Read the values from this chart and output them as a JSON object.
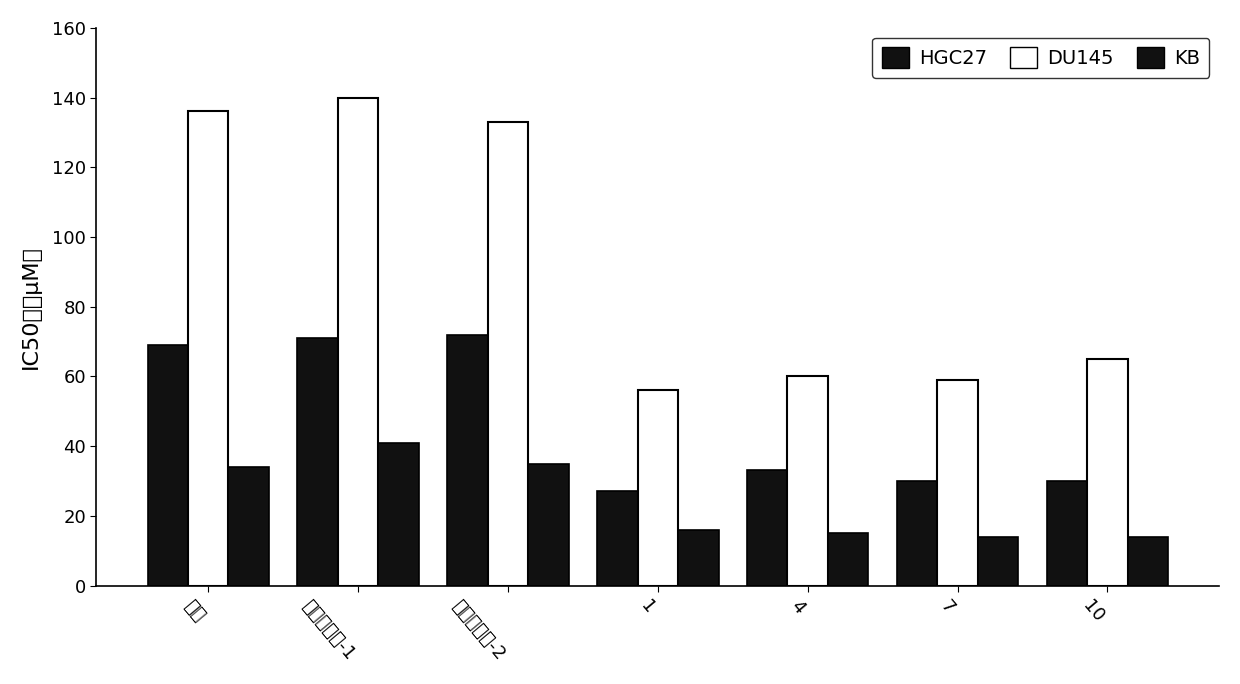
{
  "categories": [
    "卡铂",
    "公开化合物-1",
    "公开化合物-2",
    "1",
    "4",
    "7",
    "10"
  ],
  "HGC27": [
    69,
    71,
    72,
    27,
    33,
    30,
    30
  ],
  "DU145": [
    136,
    140,
    133,
    56,
    60,
    59,
    65
  ],
  "KB": [
    34,
    41,
    35,
    16,
    15,
    14,
    14
  ],
  "ylabel": "IC50値（μM）",
  "ylim": [
    0,
    160
  ],
  "yticks": [
    0,
    20,
    40,
    60,
    80,
    100,
    120,
    140,
    160
  ],
  "bar_width": 0.27,
  "hgc27_color": "#111111",
  "du145_color": "#ffffff",
  "kb_color": "#111111",
  "edge_color": "#000000",
  "background_color": "#ffffff",
  "legend_labels": [
    "HGC27",
    "DU145",
    "KB"
  ],
  "label_fontsize": 16,
  "tick_fontsize": 13,
  "legend_fontsize": 14
}
